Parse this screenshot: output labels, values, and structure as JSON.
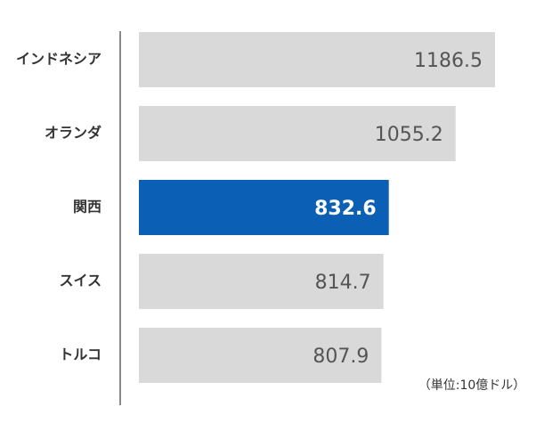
{
  "chart_data": {
    "type": "bar",
    "orientation": "horizontal",
    "categories": [
      "インドネシア",
      "オランダ",
      "関西",
      "スイス",
      "トルコ"
    ],
    "values": [
      1186.5,
      1055.2,
      832.6,
      814.7,
      807.9
    ],
    "colors": [
      "#d9d9d9",
      "#d9d9d9",
      "#0b5fb5",
      "#d9d9d9",
      "#d9d9d9"
    ],
    "unit_note": "（単位:10億ドル）"
  }
}
